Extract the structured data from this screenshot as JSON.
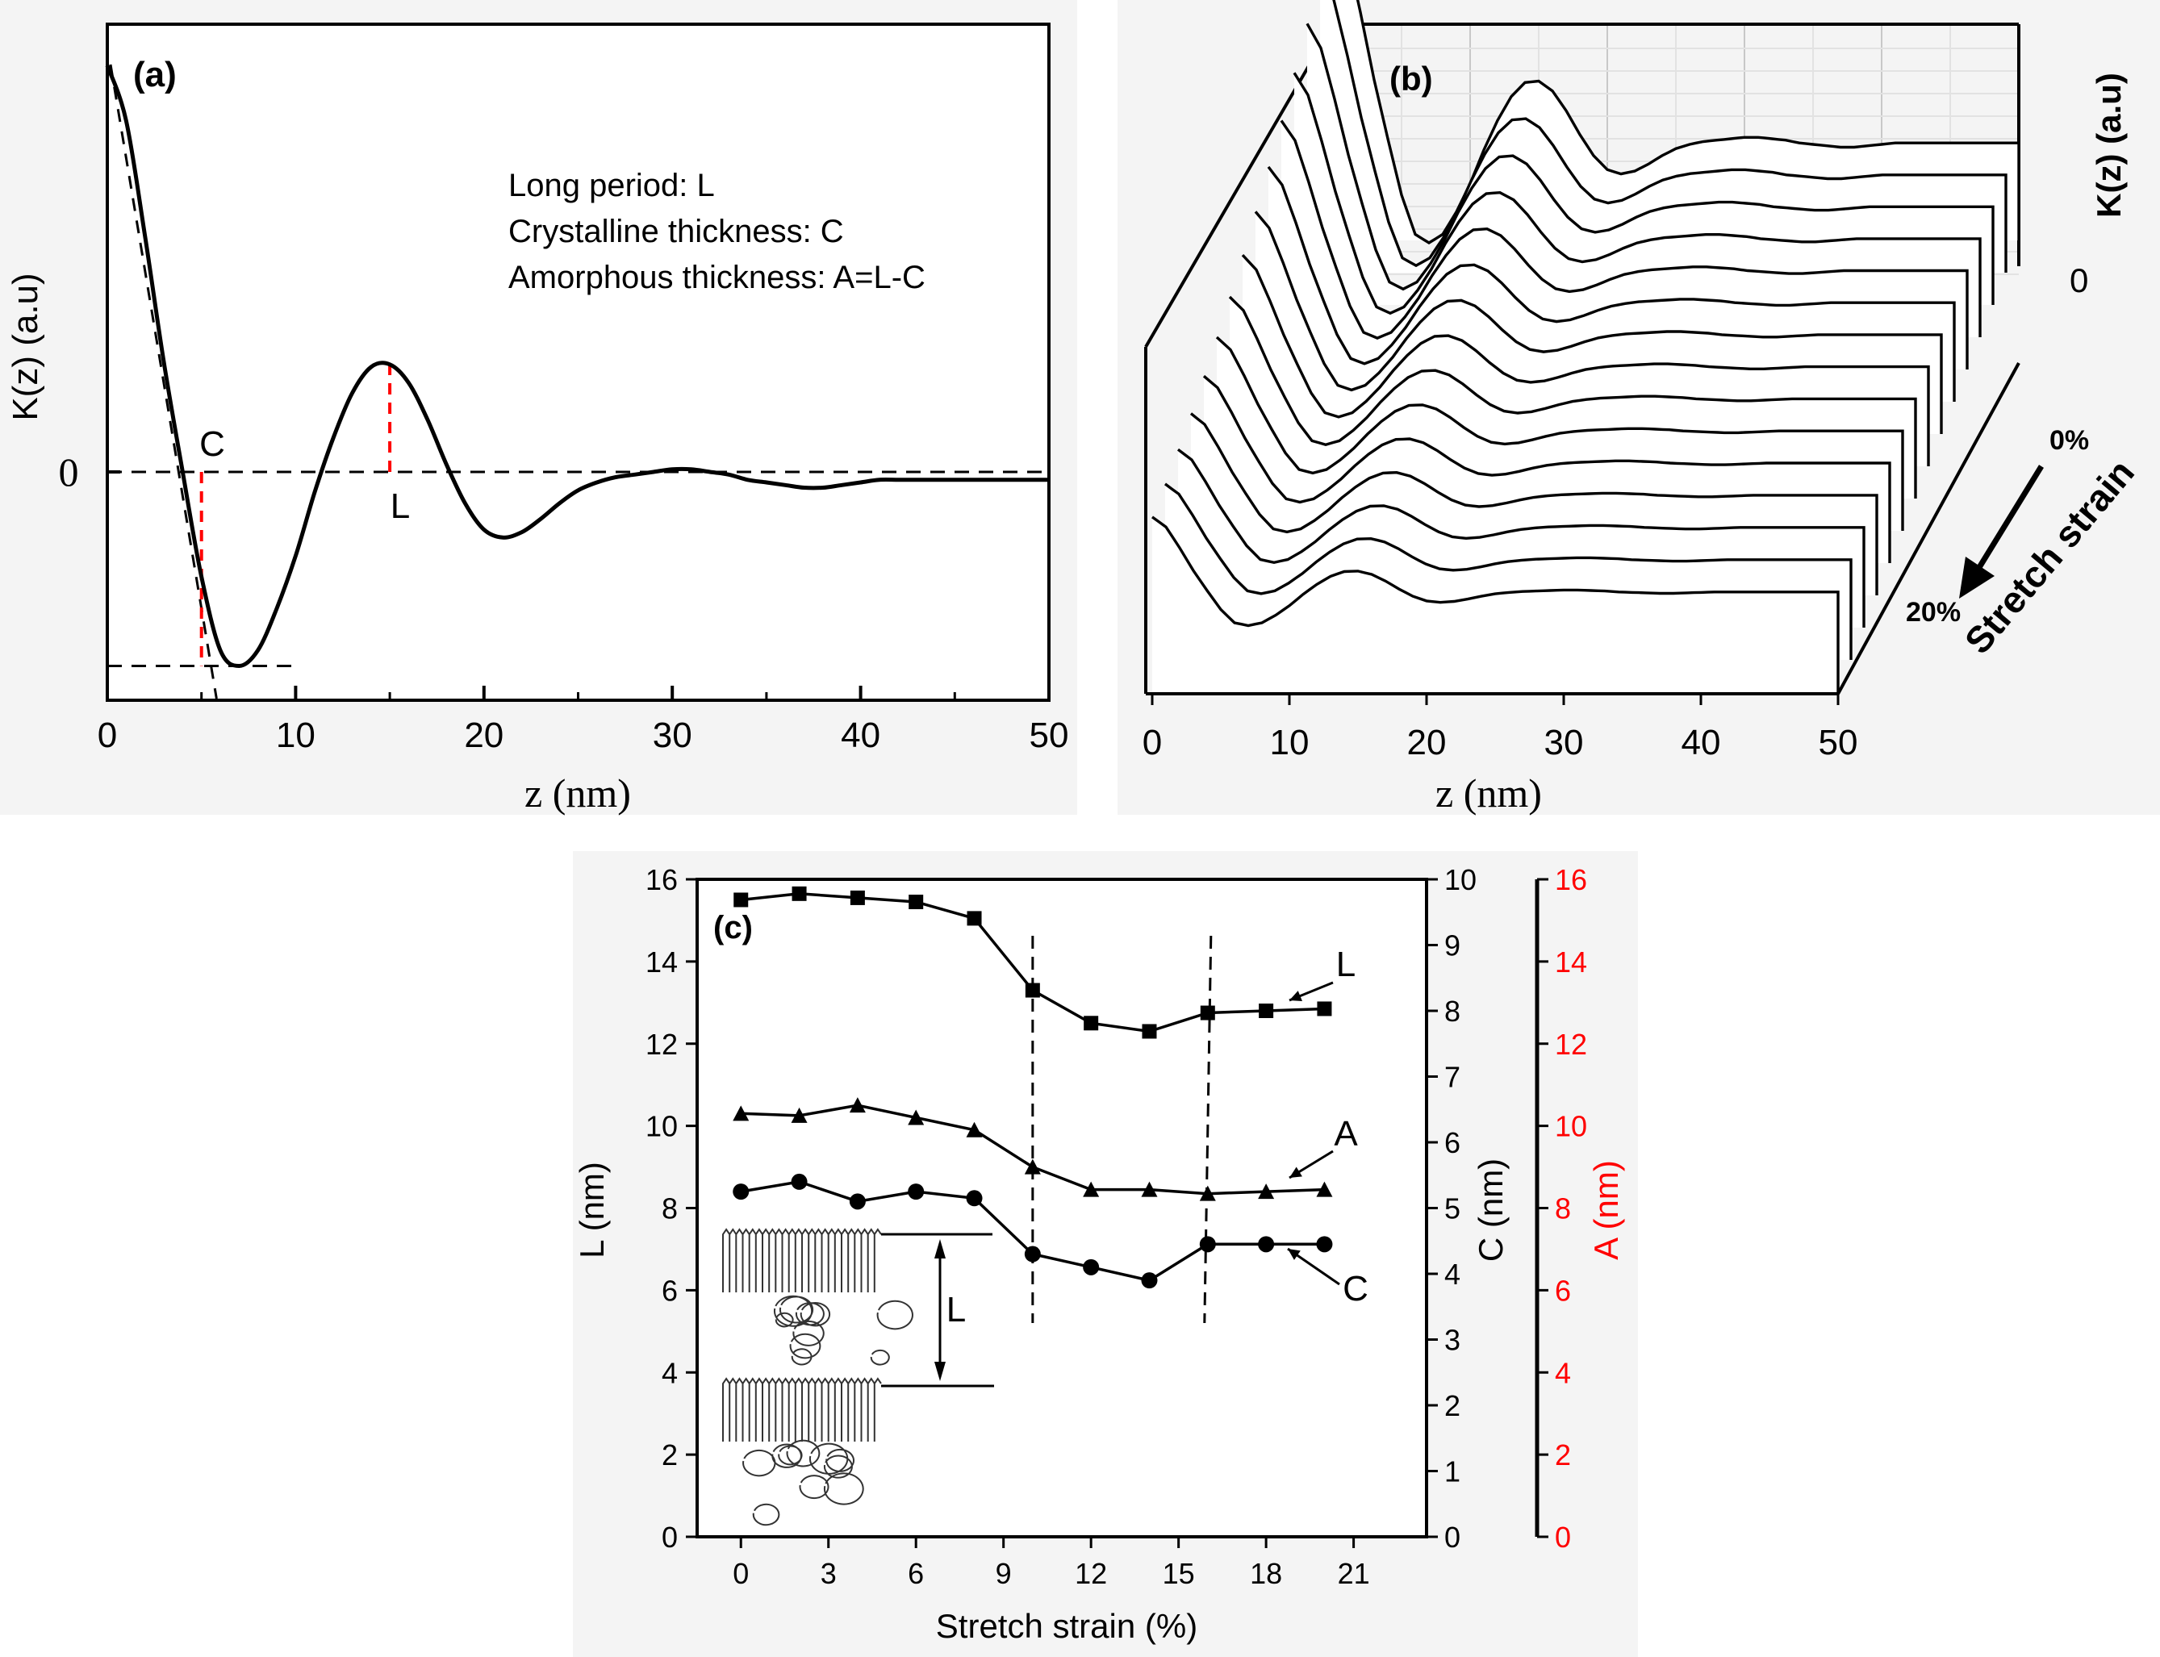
{
  "chart_data": [
    {
      "panel": "(a)",
      "type": "line",
      "xlabel": "z (nm)",
      "ylabel": "K(z) (a.u)",
      "xlim": [
        0,
        50
      ],
      "ylim": [
        -1.2,
        2.0
      ],
      "xticks": [
        "0",
        "10",
        "20",
        "30",
        "40",
        "50"
      ],
      "yticks": [
        "0"
      ],
      "notes": [
        "Long period: L",
        "Crystalline thickness: C",
        "Amorphous thickness: A=L-C"
      ],
      "markers": {
        "C": "C",
        "L": "L",
        "C_z": 5,
        "L_z": 15
      },
      "series": [
        {
          "x": [
            0,
            1,
            2,
            3,
            4,
            5,
            6,
            7,
            8,
            9,
            10,
            11,
            12,
            13,
            14,
            15,
            16,
            17,
            18,
            19,
            20,
            21,
            22,
            23,
            24,
            25,
            26,
            27,
            28,
            29,
            30,
            31,
            32,
            33,
            34,
            35,
            36,
            37,
            38,
            39,
            40,
            41,
            42,
            43,
            44,
            45,
            46,
            47,
            48,
            49,
            50
          ],
          "y": [
            1.55,
            1.34,
            0.9,
            0.42,
            0.0,
            -0.4,
            -0.68,
            -0.74,
            -0.68,
            -0.52,
            -0.32,
            -0.08,
            0.13,
            0.3,
            0.4,
            0.41,
            0.34,
            0.2,
            0.03,
            -0.12,
            -0.22,
            -0.25,
            -0.23,
            -0.18,
            -0.12,
            -0.07,
            -0.04,
            -0.02,
            -0.01,
            0.0,
            0.01,
            0.01,
            0.0,
            -0.01,
            -0.03,
            -0.04,
            -0.05,
            -0.06,
            -0.06,
            -0.05,
            -0.04,
            -0.03,
            -0.03,
            -0.03,
            -0.03,
            -0.03,
            -0.03,
            -0.03,
            -0.03,
            -0.03,
            -0.03
          ]
        }
      ]
    },
    {
      "panel": "(b)",
      "type": "line",
      "xlabel": "z (nm)",
      "ylabel": "K(z) (a.u)",
      "zlabel": "Stretch strain",
      "xticks": [
        "0",
        "10",
        "20",
        "30",
        "40",
        "50"
      ],
      "yticks": [
        "0"
      ],
      "strain_labels": [
        "0%",
        "20%"
      ]
    },
    {
      "panel": "(c)",
      "type": "line",
      "xlabel": "Stretch strain (%)",
      "ylabel_left": "L (nm)",
      "ylabel_right1": "C (nm)",
      "ylabel_right2": "A (nm)",
      "xlim": [
        -1.5,
        23.5
      ],
      "xticks": [
        "0",
        "3",
        "6",
        "9",
        "12",
        "15",
        "18",
        "21"
      ],
      "ylim_L": [
        0,
        16
      ],
      "yticks_L": [
        "0",
        "2",
        "4",
        "6",
        "8",
        "10",
        "12",
        "14",
        "16"
      ],
      "ylim_C": [
        0,
        10
      ],
      "yticks_C": [
        "0",
        "1",
        "2",
        "3",
        "4",
        "5",
        "6",
        "7",
        "8",
        "9",
        "10"
      ],
      "ylim_A": [
        0,
        16
      ],
      "yticks_A": [
        "0",
        "2",
        "4",
        "6",
        "8",
        "10",
        "12",
        "14",
        "16"
      ],
      "dashed_x": [
        10,
        16
      ],
      "inset_label": "L",
      "colors": {
        "A_axis": "#ff0000",
        "L_axis": "#000000",
        "C_axis": "#000000"
      },
      "series": [
        {
          "name": "L",
          "axis": "L",
          "marker": "square",
          "x": [
            0,
            2,
            4,
            6,
            8,
            10,
            12,
            14,
            16,
            18,
            20
          ],
          "y": [
            15.5,
            15.65,
            15.55,
            15.45,
            15.05,
            13.3,
            12.5,
            12.3,
            12.75,
            12.8,
            12.85
          ]
        },
        {
          "name": "A",
          "axis": "A",
          "marker": "triangle",
          "x": [
            0,
            2,
            4,
            6,
            8,
            10,
            12,
            14,
            16,
            18,
            20
          ],
          "y": [
            10.3,
            10.25,
            10.5,
            10.2,
            9.9,
            9.0,
            8.45,
            8.45,
            8.35,
            8.4,
            8.45
          ]
        },
        {
          "name": "C",
          "axis": "C",
          "marker": "circle",
          "x": [
            0,
            2,
            4,
            6,
            8,
            10,
            12,
            14,
            16,
            18,
            20
          ],
          "y": [
            5.25,
            5.4,
            5.1,
            5.25,
            5.15,
            4.3,
            4.1,
            3.9,
            4.45,
            4.45,
            4.45
          ]
        }
      ]
    }
  ]
}
